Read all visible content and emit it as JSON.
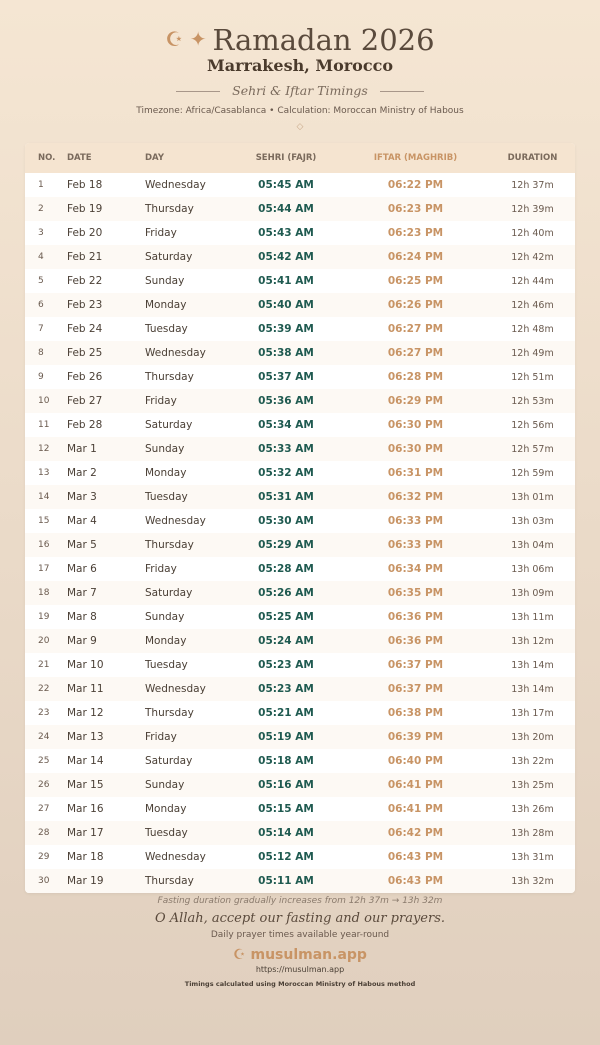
{
  "header": {
    "icon": "☪ ✦",
    "title": "Ramadan 2026",
    "city": "Marrakesh, Morocco",
    "subtitle": "Sehri & Iftar Timings",
    "info": "Timezone: Africa/Casablanca • Calculation: Moroccan Ministry of Habous",
    "ornament": "◇"
  },
  "table": {
    "columns": [
      "NO.",
      "DATE",
      "DAY",
      "SEHRI (FAJR)",
      "IFTAR (MAGHRIB)",
      "DURATION"
    ],
    "rows": [
      [
        "1",
        "Feb 18",
        "Wednesday",
        "05:45 AM",
        "06:22 PM",
        "12h 37m"
      ],
      [
        "2",
        "Feb 19",
        "Thursday",
        "05:44 AM",
        "06:23 PM",
        "12h 39m"
      ],
      [
        "3",
        "Feb 20",
        "Friday",
        "05:43 AM",
        "06:23 PM",
        "12h 40m"
      ],
      [
        "4",
        "Feb 21",
        "Saturday",
        "05:42 AM",
        "06:24 PM",
        "12h 42m"
      ],
      [
        "5",
        "Feb 22",
        "Sunday",
        "05:41 AM",
        "06:25 PM",
        "12h 44m"
      ],
      [
        "6",
        "Feb 23",
        "Monday",
        "05:40 AM",
        "06:26 PM",
        "12h 46m"
      ],
      [
        "7",
        "Feb 24",
        "Tuesday",
        "05:39 AM",
        "06:27 PM",
        "12h 48m"
      ],
      [
        "8",
        "Feb 25",
        "Wednesday",
        "05:38 AM",
        "06:27 PM",
        "12h 49m"
      ],
      [
        "9",
        "Feb 26",
        "Thursday",
        "05:37 AM",
        "06:28 PM",
        "12h 51m"
      ],
      [
        "10",
        "Feb 27",
        "Friday",
        "05:36 AM",
        "06:29 PM",
        "12h 53m"
      ],
      [
        "11",
        "Feb 28",
        "Saturday",
        "05:34 AM",
        "06:30 PM",
        "12h 56m"
      ],
      [
        "12",
        "Mar 1",
        "Sunday",
        "05:33 AM",
        "06:30 PM",
        "12h 57m"
      ],
      [
        "13",
        "Mar 2",
        "Monday",
        "05:32 AM",
        "06:31 PM",
        "12h 59m"
      ],
      [
        "14",
        "Mar 3",
        "Tuesday",
        "05:31 AM",
        "06:32 PM",
        "13h 01m"
      ],
      [
        "15",
        "Mar 4",
        "Wednesday",
        "05:30 AM",
        "06:33 PM",
        "13h 03m"
      ],
      [
        "16",
        "Mar 5",
        "Thursday",
        "05:29 AM",
        "06:33 PM",
        "13h 04m"
      ],
      [
        "17",
        "Mar 6",
        "Friday",
        "05:28 AM",
        "06:34 PM",
        "13h 06m"
      ],
      [
        "18",
        "Mar 7",
        "Saturday",
        "05:26 AM",
        "06:35 PM",
        "13h 09m"
      ],
      [
        "19",
        "Mar 8",
        "Sunday",
        "05:25 AM",
        "06:36 PM",
        "13h 11m"
      ],
      [
        "20",
        "Mar 9",
        "Monday",
        "05:24 AM",
        "06:36 PM",
        "13h 12m"
      ],
      [
        "21",
        "Mar 10",
        "Tuesday",
        "05:23 AM",
        "06:37 PM",
        "13h 14m"
      ],
      [
        "22",
        "Mar 11",
        "Wednesday",
        "05:23 AM",
        "06:37 PM",
        "13h 14m"
      ],
      [
        "23",
        "Mar 12",
        "Thursday",
        "05:21 AM",
        "06:38 PM",
        "13h 17m"
      ],
      [
        "24",
        "Mar 13",
        "Friday",
        "05:19 AM",
        "06:39 PM",
        "13h 20m"
      ],
      [
        "25",
        "Mar 14",
        "Saturday",
        "05:18 AM",
        "06:40 PM",
        "13h 22m"
      ],
      [
        "26",
        "Mar 15",
        "Sunday",
        "05:16 AM",
        "06:41 PM",
        "13h 25m"
      ],
      [
        "27",
        "Mar 16",
        "Monday",
        "05:15 AM",
        "06:41 PM",
        "13h 26m"
      ],
      [
        "28",
        "Mar 17",
        "Tuesday",
        "05:14 AM",
        "06:42 PM",
        "13h 28m"
      ],
      [
        "29",
        "Mar 18",
        "Wednesday",
        "05:12 AM",
        "06:43 PM",
        "13h 31m"
      ],
      [
        "30",
        "Mar 19",
        "Thursday",
        "05:11 AM",
        "06:43 PM",
        "13h 32m"
      ]
    ]
  },
  "footer": {
    "note": "Fasting duration gradually increases from 12h 37m → 13h 32m",
    "dua": "O Allah, accept our fasting and our prayers.",
    "tagline": "Daily prayer times available year-round",
    "brand_icon": "☪",
    "brand": "musulman.app",
    "url": "https://musulman.app",
    "method": "Timings calculated using Moroccan Ministry of Habous method"
  },
  "colors": {
    "sehri": "#1f5a50",
    "iftar": "#c89465",
    "background": "#f5e6d3"
  }
}
